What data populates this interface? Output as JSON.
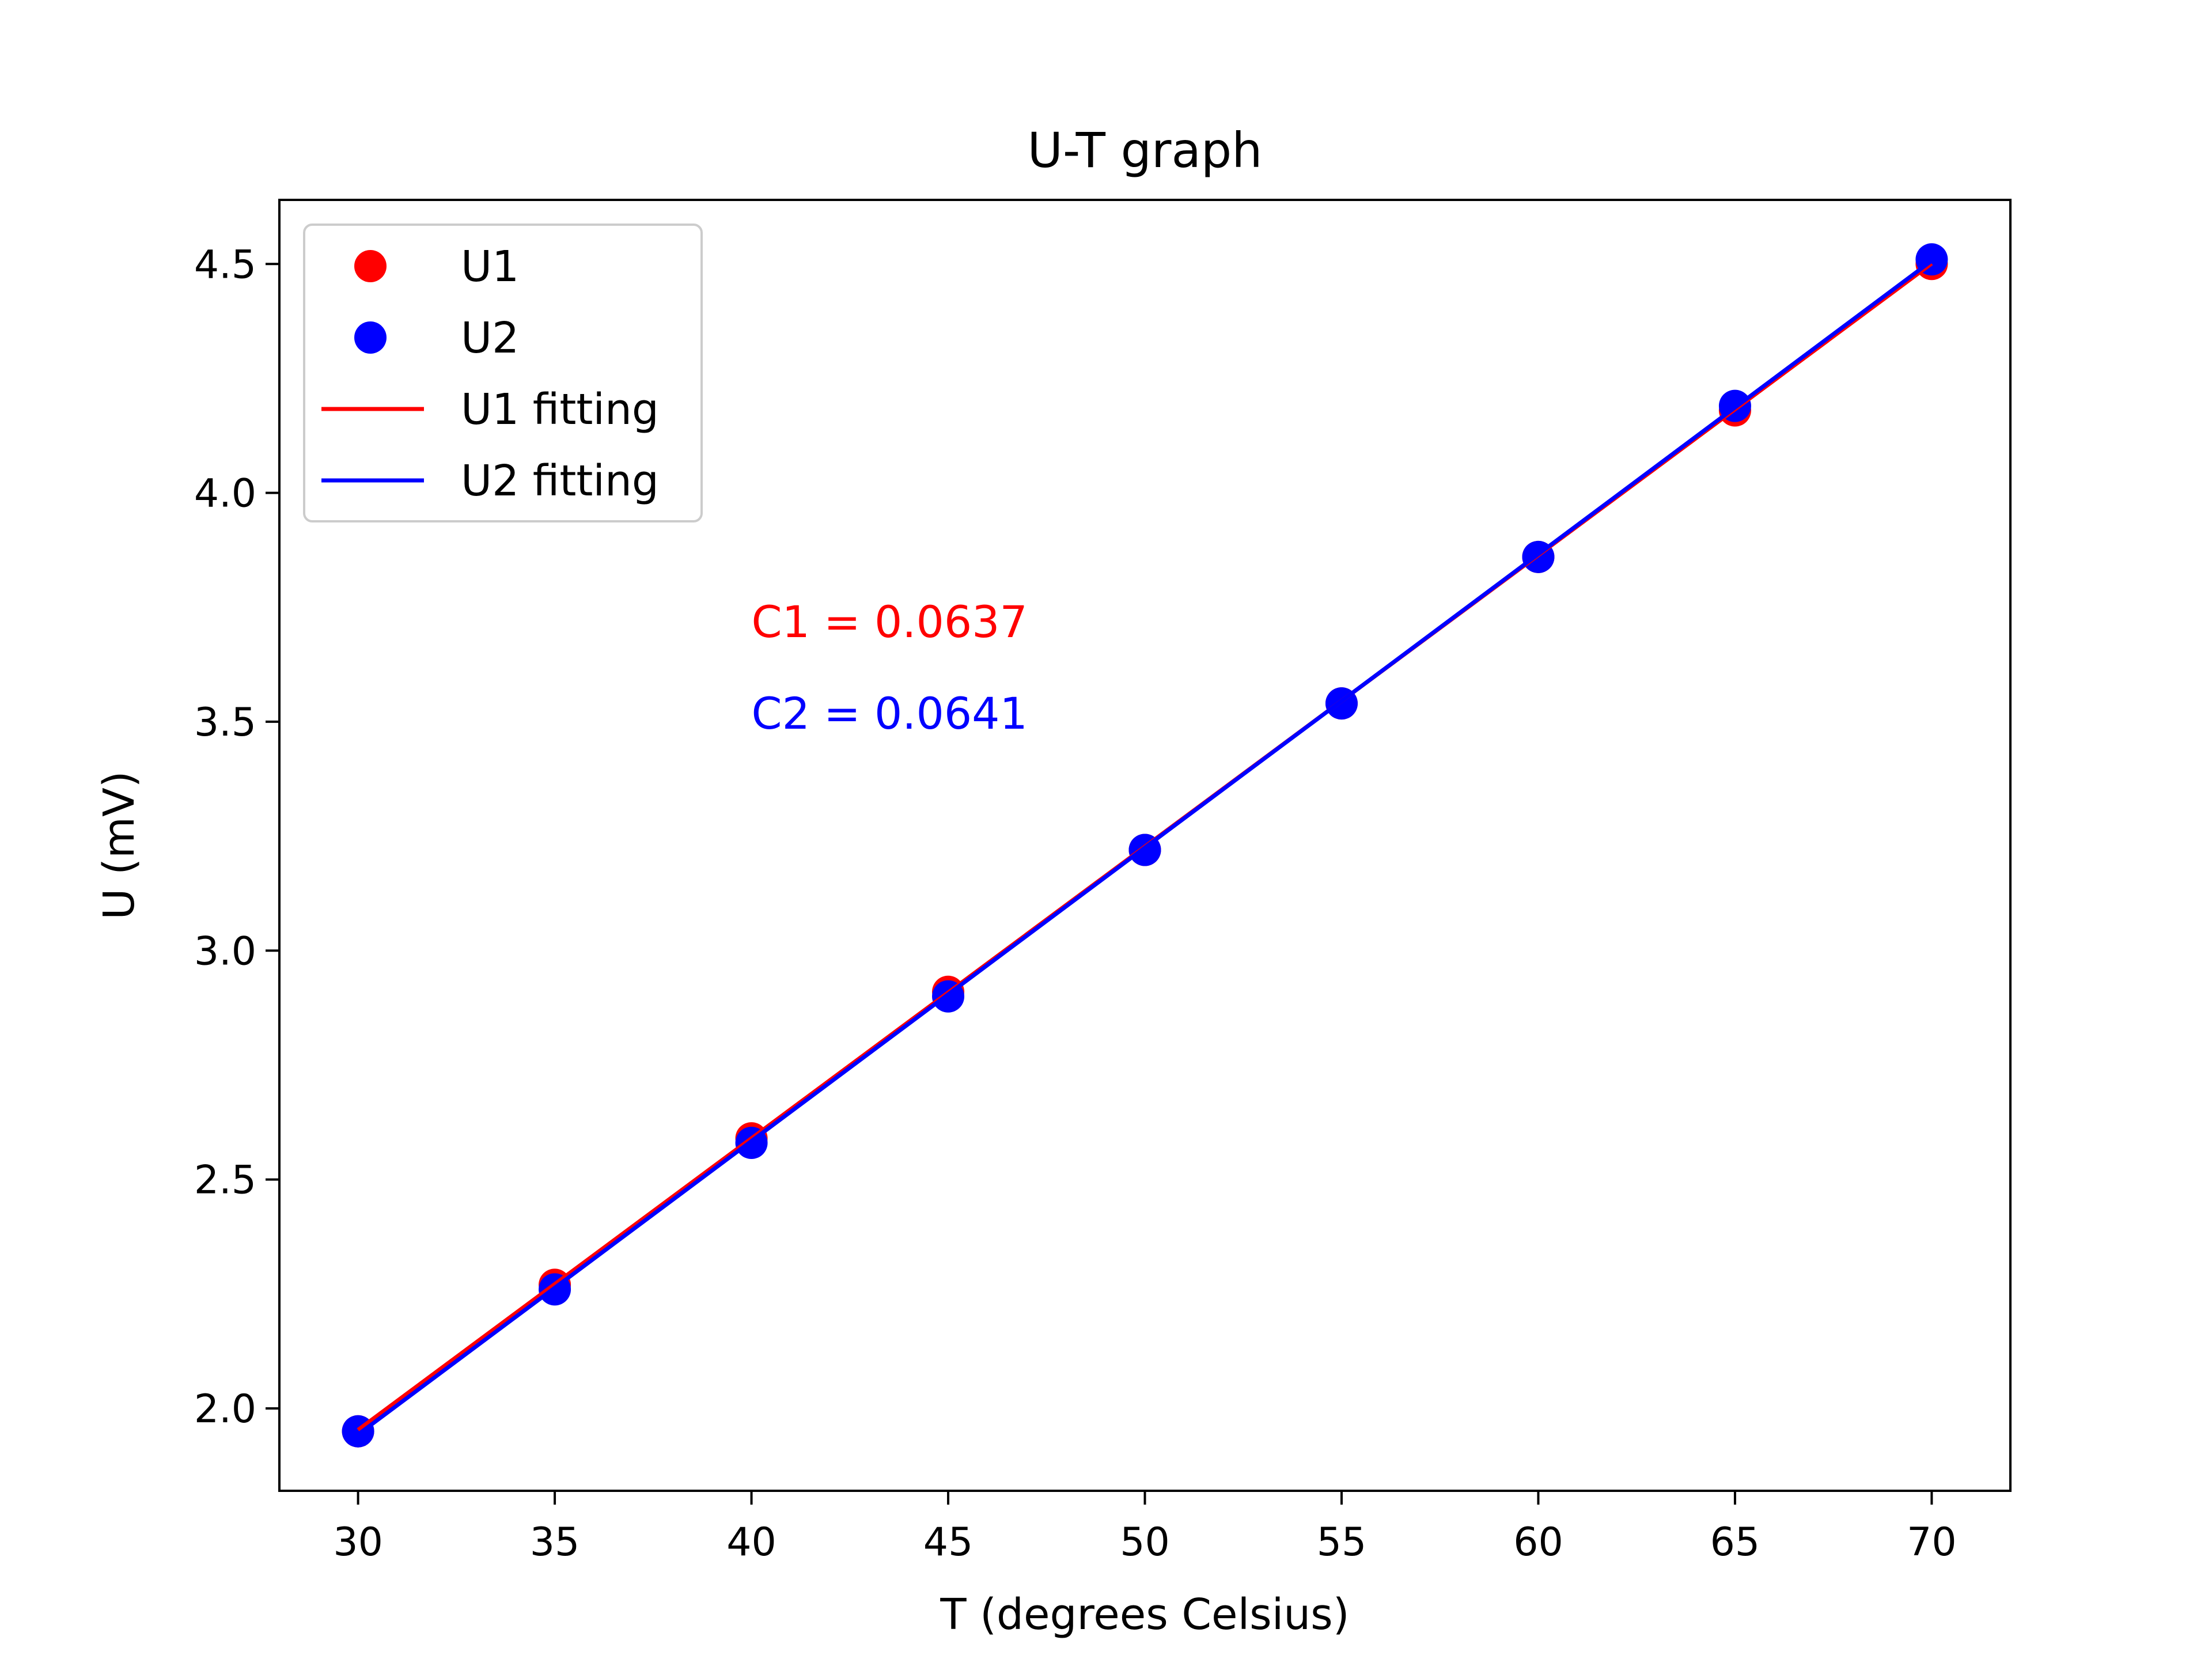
{
  "chart_data": {
    "type": "scatter",
    "title": "U-T graph",
    "xlabel": "T (degrees Celsius)",
    "ylabel": "U (mV)",
    "xlim": [
      28,
      72
    ],
    "ylim": [
      1.82,
      4.64
    ],
    "xticks": [
      30,
      35,
      40,
      45,
      50,
      55,
      60,
      65,
      70
    ],
    "yticks": [
      2.0,
      2.5,
      3.0,
      3.5,
      4.0,
      4.5
    ],
    "grid": false,
    "legend_position": "top-left",
    "x": [
      30,
      35,
      40,
      45,
      50,
      55,
      60,
      65,
      70
    ],
    "series": [
      {
        "name": "U1",
        "kind": "points",
        "color": "#ff0000",
        "values": [
          1.95,
          2.27,
          2.59,
          2.91,
          3.22,
          3.54,
          3.86,
          4.18,
          4.5
        ]
      },
      {
        "name": "U2",
        "kind": "points",
        "color": "#0000ff",
        "values": [
          1.95,
          2.26,
          2.58,
          2.9,
          3.22,
          3.54,
          3.86,
          4.19,
          4.51
        ]
      },
      {
        "name": "U1 fitting",
        "kind": "line",
        "color": "#ff0000",
        "x": [
          30,
          70
        ],
        "values": [
          1.953,
          4.501
        ]
      },
      {
        "name": "U2 fitting",
        "kind": "line",
        "color": "#0000ff",
        "x": [
          30,
          70
        ],
        "values": [
          1.943,
          4.507
        ]
      }
    ],
    "annotations": [
      {
        "text": "C1 = 0.0637",
        "color": "#ff0000",
        "x": 40,
        "y": 3.72
      },
      {
        "text": "C2 = 0.0641",
        "color": "#0000ff",
        "x": 40,
        "y": 3.52
      }
    ]
  }
}
